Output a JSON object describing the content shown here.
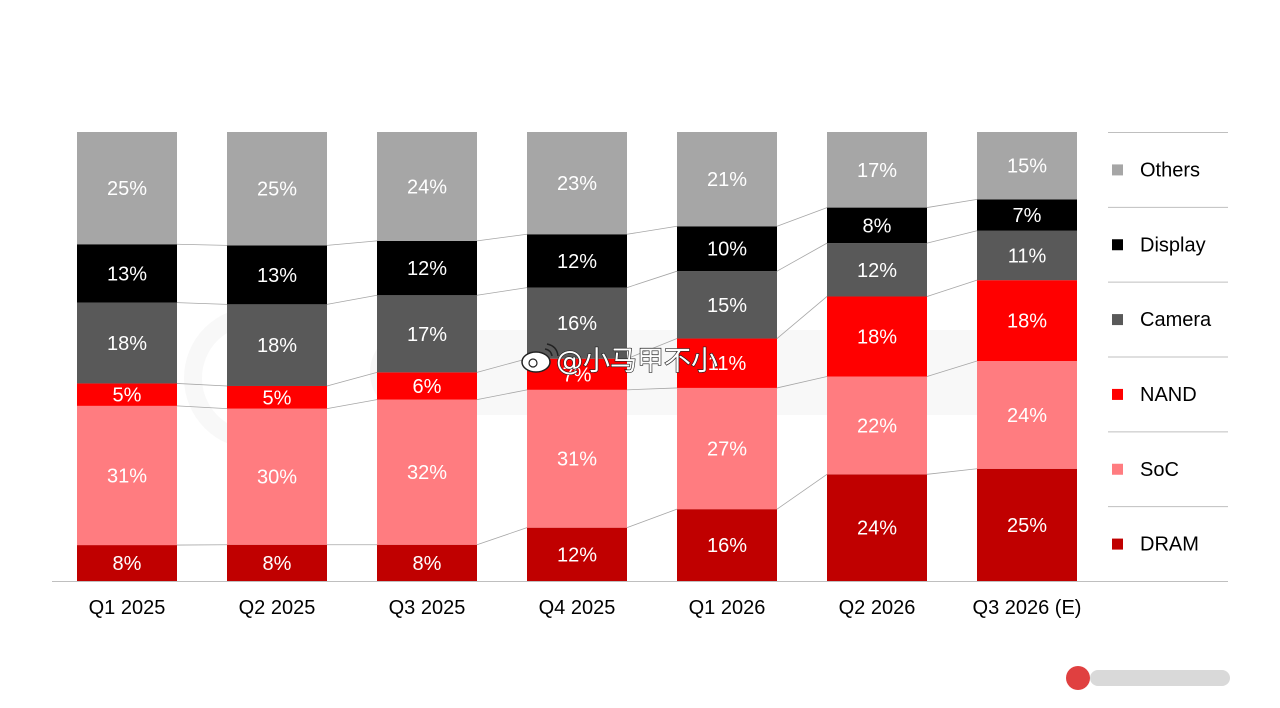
{
  "chart_data": {
    "type": "bar",
    "stacked": true,
    "percent_stacked": true,
    "categories": [
      "Q1 2025",
      "Q2 2025",
      "Q3 2025",
      "Q4 2025",
      "Q1 2026",
      "Q2 2026",
      "Q3 2026 (E)"
    ],
    "series": [
      {
        "name": "DRAM",
        "color": "#C00000",
        "values": [
          8,
          8,
          8,
          12,
          16,
          24,
          25
        ]
      },
      {
        "name": "SoC",
        "color": "#FF7C80",
        "values": [
          31,
          30,
          32,
          31,
          27,
          22,
          24
        ]
      },
      {
        "name": "NAND",
        "color": "#FF0000",
        "values": [
          5,
          5,
          6,
          7,
          11,
          18,
          18
        ]
      },
      {
        "name": "Camera",
        "color": "#595959",
        "values": [
          18,
          18,
          17,
          16,
          15,
          12,
          11
        ]
      },
      {
        "name": "Display",
        "color": "#000000",
        "values": [
          13,
          13,
          12,
          12,
          10,
          8,
          7
        ]
      },
      {
        "name": "Others",
        "color": "#A6A6A6",
        "values": [
          25,
          25,
          24,
          23,
          21,
          17,
          15
        ]
      }
    ],
    "data_labels": [
      [
        "8%",
        "8%",
        "8%",
        "12%",
        "16%",
        "24%",
        "25%"
      ],
      [
        "31%",
        "30%",
        "32%",
        "31%",
        "27%",
        "22%",
        "24%"
      ],
      [
        "5%",
        "5%",
        "6%",
        "7%",
        "11%",
        "18%",
        "18%"
      ],
      [
        "18%",
        "18%",
        "17%",
        "16%",
        "15%",
        "12%",
        "11%"
      ],
      [
        "13%",
        "13%",
        "12%",
        "12%",
        "10%",
        "8%",
        "7%"
      ],
      [
        "25%",
        "25%",
        "24%",
        "23%",
        "21%",
        "17%",
        "15%"
      ]
    ],
    "legend_position": "right",
    "grid": false,
    "series_lines": true,
    "title": "",
    "xlabel": "",
    "ylabel": ""
  },
  "watermark": {
    "weibo_handle": "@小马甲不小",
    "icon": "weibo-icon"
  }
}
